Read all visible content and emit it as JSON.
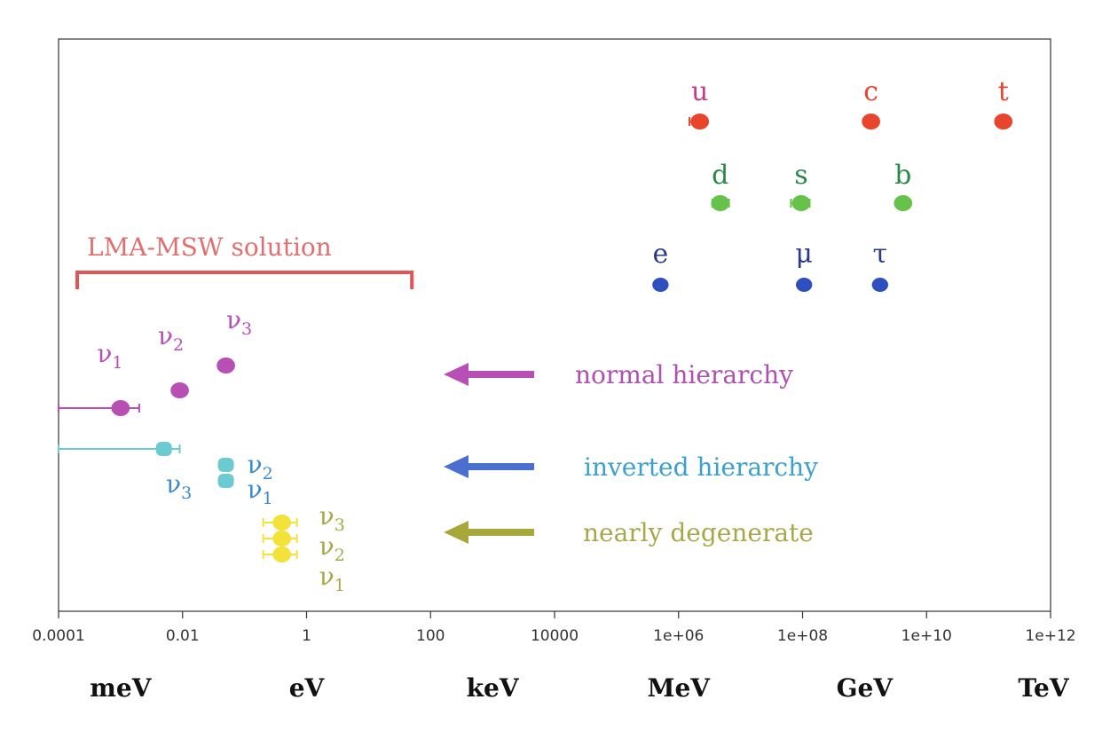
{
  "chart_data": {
    "type": "scatter",
    "x_scale": "log",
    "xlim": [
      0.0001,
      1000000000000
    ],
    "grid": false,
    "x_ticks": [
      {
        "value": 0.0001,
        "label": "0.0001"
      },
      {
        "value": 0.01,
        "label": "0.01"
      },
      {
        "value": 1,
        "label": "1"
      },
      {
        "value": 100,
        "label": "100"
      },
      {
        "value": 10000,
        "label": "10000"
      },
      {
        "value": 1000000,
        "label": "1e+06"
      },
      {
        "value": 100000000,
        "label": "1e+08"
      },
      {
        "value": 10000000000,
        "label": "1e+10"
      },
      {
        "value": 1000000000000,
        "label": "1e+12"
      }
    ],
    "unit_labels": [
      {
        "value": 0.001,
        "label": "meV"
      },
      {
        "value": 1,
        "label": "eV"
      },
      {
        "value": 1000,
        "label": "keV"
      },
      {
        "value": 1000000,
        "label": "MeV"
      },
      {
        "value": 1000000000,
        "label": "GeV"
      },
      {
        "value": 1000000000000,
        "label": "TeV"
      }
    ],
    "colors": {
      "up_quarks": "#e8452d",
      "up_labels": "#c43c8c",
      "down_quarks": "#66c24a",
      "down_labels": "#2a8a4a",
      "leptons": "#2e4fbf",
      "lepton_labels": "#2b3a8c",
      "normal": "#b84fb4",
      "inverted": "#6ccbd0",
      "inverted_labels": "#3a8ad0",
      "degenerate": "#f2e23a",
      "degenerate_labels": "#a8a84a",
      "bracket": "#e05555",
      "bracket_label": "#e07070",
      "arrow_normal": "#b84fb4",
      "arrow_inverted": "#4a6fd0",
      "arrow_degenerate": "#a8a83a",
      "label_normal": "#b04fb0",
      "label_inverted": "#3aa0d0",
      "label_degenerate": "#a8a84a"
    },
    "up_type_quarks": [
      {
        "name": "u",
        "value": 2200000,
        "err_low": 1500000,
        "err_high": 2700000
      },
      {
        "name": "c",
        "value": 1270000000
      },
      {
        "name": "t",
        "value": 173000000000
      }
    ],
    "down_type_quarks": [
      {
        "name": "d",
        "value": 4700000,
        "err_low": 3500000,
        "err_high": 6500000
      },
      {
        "name": "s",
        "value": 95000000,
        "err_low": 65000000,
        "err_high": 130000000
      },
      {
        "name": "b",
        "value": 4180000000
      }
    ],
    "charged_leptons": [
      {
        "name": "e",
        "value": 511000
      },
      {
        "name": "μ",
        "value": 105700000
      },
      {
        "name": "τ",
        "value": 1777000000
      }
    ],
    "lma_msw": {
      "label": "LMA-MSW solution",
      "range": [
        0.0002,
        50
      ]
    },
    "neutrino_scenarios": [
      {
        "name": "normal hierarchy",
        "points": [
          {
            "symbol": "ν",
            "index": "1",
            "value": 0.001,
            "err_low": 0.0001,
            "err_high": 0.002
          },
          {
            "symbol": "ν",
            "index": "2",
            "value": 0.009
          },
          {
            "symbol": "ν",
            "index": "3",
            "value": 0.05
          }
        ]
      },
      {
        "name": "inverted hierarchy",
        "points": [
          {
            "symbol": "ν",
            "index": "3",
            "value": 0.005,
            "err_low": 0.0001,
            "err_high": 0.009
          },
          {
            "symbol": "ν",
            "index": "2",
            "value": 0.05
          },
          {
            "symbol": "ν",
            "index": "1",
            "value": 0.05
          }
        ]
      },
      {
        "name": "nearly degenerate",
        "points": [
          {
            "symbol": "ν",
            "index": "3",
            "value": 0.4,
            "err_low": 0.2,
            "err_high": 0.7
          },
          {
            "symbol": "ν",
            "index": "2",
            "value": 0.4,
            "err_low": 0.2,
            "err_high": 0.7
          },
          {
            "symbol": "ν",
            "index": "1",
            "value": 0.4,
            "err_low": 0.2,
            "err_high": 0.7
          }
        ]
      }
    ]
  }
}
